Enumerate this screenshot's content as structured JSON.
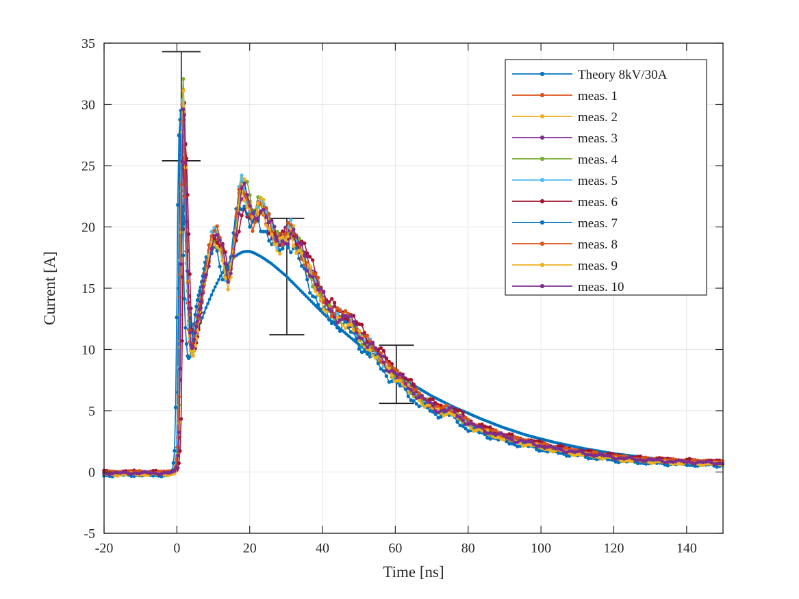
{
  "chart_data": {
    "type": "line",
    "title": "",
    "xlabel": "Time [ns]",
    "ylabel": "Current [A]",
    "xlim": [
      -20,
      150
    ],
    "ylim": [
      -5,
      35
    ],
    "x_ticks": [
      -20,
      0,
      20,
      40,
      60,
      80,
      100,
      120,
      140
    ],
    "y_ticks": [
      -5,
      0,
      5,
      10,
      15,
      20,
      25,
      30,
      35
    ],
    "grid": true,
    "legend_position": "top-right",
    "axis_color": "#262626",
    "grid_color": "#e6e6e6",
    "errorbar_color": "#1a1a1a",
    "errorbars": [
      {
        "t": 1.2,
        "lo": 25.4,
        "hi": 34.3,
        "cap_half_ns": 5.3
      },
      {
        "t": 30.2,
        "lo": 11.2,
        "hi": 20.7,
        "cap_half_ns": 4.8
      },
      {
        "t": 60.3,
        "lo": 5.6,
        "hi": 10.35,
        "cap_half_ns": 4.8
      }
    ],
    "theory": {
      "name": "Theory 8kV/30A",
      "color": "#0072BD",
      "points": [
        [
          -20,
          0
        ],
        [
          -1,
          0
        ],
        [
          -0.6,
          0.1
        ],
        [
          -0.3,
          0.5
        ],
        [
          0,
          2
        ],
        [
          0.2,
          5
        ],
        [
          0.4,
          11
        ],
        [
          0.6,
          19
        ],
        [
          0.8,
          26
        ],
        [
          1.0,
          29.5
        ],
        [
          1.1,
          30
        ],
        [
          1.3,
          29
        ],
        [
          1.6,
          26.5
        ],
        [
          2,
          22.5
        ],
        [
          2.5,
          18
        ],
        [
          3,
          14.8
        ],
        [
          3.5,
          12.9
        ],
        [
          4,
          11.9
        ],
        [
          4.5,
          11.4
        ],
        [
          5,
          11.3
        ],
        [
          5.5,
          11.4
        ],
        [
          6,
          11.8
        ],
        [
          7,
          12.6
        ],
        [
          8,
          13.4
        ],
        [
          9,
          14.1
        ],
        [
          10,
          14.8
        ],
        [
          11,
          15.4
        ],
        [
          12,
          16.0
        ],
        [
          13,
          16.5
        ],
        [
          14,
          16.9
        ],
        [
          15,
          17.3
        ],
        [
          16,
          17.6
        ],
        [
          17,
          17.8
        ],
        [
          18,
          17.95
        ],
        [
          19,
          18.0
        ],
        [
          20,
          18.0
        ],
        [
          21,
          17.9
        ],
        [
          22,
          17.75
        ],
        [
          23,
          17.6
        ],
        [
          24,
          17.4
        ],
        [
          25,
          17.2
        ],
        [
          26,
          17.0
        ],
        [
          27,
          16.75
        ],
        [
          28,
          16.5
        ],
        [
          29,
          16.25
        ],
        [
          30,
          16.0
        ],
        [
          32,
          15.4
        ],
        [
          34,
          14.8
        ],
        [
          36,
          14.2
        ],
        [
          38,
          13.6
        ],
        [
          40,
          13.0
        ],
        [
          42,
          12.45
        ],
        [
          44,
          11.9
        ],
        [
          46,
          11.4
        ],
        [
          48,
          10.9
        ],
        [
          50,
          10.4
        ],
        [
          52,
          9.95
        ],
        [
          54,
          9.5
        ],
        [
          56,
          9.0
        ],
        [
          58,
          8.5
        ],
        [
          60,
          8.0
        ],
        [
          62,
          7.6
        ],
        [
          64,
          7.25
        ],
        [
          66,
          6.9
        ],
        [
          68,
          6.55
        ],
        [
          70,
          6.2
        ],
        [
          72,
          5.9
        ],
        [
          74,
          5.6
        ],
        [
          76,
          5.3
        ],
        [
          78,
          5.05
        ],
        [
          80,
          4.8
        ],
        [
          83,
          4.4
        ],
        [
          86,
          4.05
        ],
        [
          89,
          3.7
        ],
        [
          92,
          3.4
        ],
        [
          95,
          3.1
        ],
        [
          98,
          2.85
        ],
        [
          100,
          2.7
        ],
        [
          104,
          2.4
        ],
        [
          108,
          2.15
        ],
        [
          112,
          1.9
        ],
        [
          116,
          1.7
        ],
        [
          120,
          1.5
        ],
        [
          124,
          1.35
        ],
        [
          128,
          1.2
        ],
        [
          132,
          1.05
        ],
        [
          136,
          0.95
        ],
        [
          140,
          0.85
        ],
        [
          145,
          0.75
        ],
        [
          150,
          0.65
        ]
      ]
    },
    "measurement_base_points": [
      [
        -20,
        -0.1
      ],
      [
        -16,
        -0.12
      ],
      [
        -12,
        -0.08
      ],
      [
        -8,
        -0.12
      ],
      [
        -4,
        -0.1
      ],
      [
        -2,
        -0.08
      ],
      [
        -1,
        -0.02
      ],
      [
        -0.5,
        0.4
      ],
      [
        0,
        2
      ],
      [
        0.3,
        6
      ],
      [
        0.6,
        14
      ],
      [
        0.9,
        24
      ],
      [
        1.2,
        30
      ],
      [
        1.5,
        31
      ],
      [
        1.8,
        27.5
      ],
      [
        2.2,
        21
      ],
      [
        2.6,
        15.5
      ],
      [
        3,
        12
      ],
      [
        3.5,
        10
      ],
      [
        4,
        9.8
      ],
      [
        4.5,
        10.7
      ],
      [
        5,
        11.7
      ],
      [
        6,
        13.5
      ],
      [
        7,
        15.3
      ],
      [
        8,
        17
      ],
      [
        9,
        18.5
      ],
      [
        10,
        19.3
      ],
      [
        10.5,
        19.5
      ],
      [
        11,
        19.2
      ],
      [
        12,
        17.9
      ],
      [
        13,
        16.2
      ],
      [
        13.5,
        15.6
      ],
      [
        14,
        15.9
      ],
      [
        15,
        17.4
      ],
      [
        16,
        20.4
      ],
      [
        17,
        22.9
      ],
      [
        17.5,
        23.3
      ],
      [
        18,
        23.2
      ],
      [
        19,
        22.4
      ],
      [
        20,
        21
      ],
      [
        20.5,
        20.5
      ],
      [
        21,
        20.7
      ],
      [
        22,
        21.8
      ],
      [
        22.5,
        22
      ],
      [
        23,
        21.8
      ],
      [
        24,
        21.2
      ],
      [
        25,
        20.4
      ],
      [
        26,
        19.5
      ],
      [
        27,
        18.9
      ],
      [
        28,
        18.6
      ],
      [
        29,
        19
      ],
      [
        30,
        19.4
      ],
      [
        31,
        19.6
      ],
      [
        32,
        19.2
      ],
      [
        33,
        18.5
      ],
      [
        34,
        17.8
      ],
      [
        35,
        17.1
      ],
      [
        36,
        16.5
      ],
      [
        37,
        15.9
      ],
      [
        38,
        15.3
      ],
      [
        39,
        14.6
      ],
      [
        40,
        13.9
      ],
      [
        41,
        13.4
      ],
      [
        42,
        13
      ],
      [
        43,
        12.8
      ],
      [
        44,
        12.7
      ],
      [
        45,
        12.5
      ],
      [
        46,
        12.6
      ],
      [
        47,
        12.4
      ],
      [
        48,
        11.9
      ],
      [
        49,
        11.5
      ],
      [
        50,
        11.1
      ],
      [
        51,
        10.7
      ],
      [
        52,
        10.4
      ],
      [
        53,
        10.2
      ],
      [
        54,
        9.9
      ],
      [
        55,
        9.5
      ],
      [
        56,
        9.1
      ],
      [
        57,
        8.7
      ],
      [
        58,
        8.4
      ],
      [
        59,
        8.1
      ],
      [
        60,
        7.9
      ],
      [
        61,
        7.6
      ],
      [
        62,
        7.3
      ],
      [
        63,
        7
      ],
      [
        64,
        6.7
      ],
      [
        65,
        6.4
      ],
      [
        66,
        6.1
      ],
      [
        67,
        5.9
      ],
      [
        68,
        5.7
      ],
      [
        69,
        5.5
      ],
      [
        70,
        5.3
      ],
      [
        71,
        5.1
      ],
      [
        72,
        5
      ],
      [
        73,
        5
      ],
      [
        74,
        5.05
      ],
      [
        75,
        5
      ],
      [
        76,
        4.8
      ],
      [
        77,
        4.5
      ],
      [
        78,
        4.3
      ],
      [
        79,
        4.1
      ],
      [
        80,
        3.9
      ],
      [
        82,
        3.6
      ],
      [
        84,
        3.4
      ],
      [
        86,
        3.2
      ],
      [
        88,
        3
      ],
      [
        90,
        2.8
      ],
      [
        92,
        2.6
      ],
      [
        94,
        2.5
      ],
      [
        96,
        2.35
      ],
      [
        98,
        2.25
      ],
      [
        100,
        2.1
      ],
      [
        103,
        1.9
      ],
      [
        106,
        1.75
      ],
      [
        110,
        1.55
      ],
      [
        114,
        1.4
      ],
      [
        118,
        1.25
      ],
      [
        122,
        1.1
      ],
      [
        126,
        1
      ],
      [
        130,
        0.95
      ],
      [
        135,
        0.85
      ],
      [
        140,
        0.8
      ],
      [
        145,
        0.75
      ],
      [
        150,
        0.7
      ]
    ],
    "measurements": [
      {
        "name": "meas. 1",
        "color": "#D95319",
        "dt": 0.2,
        "dy": 0.25,
        "peak_scale": 0.98,
        "seed": 1
      },
      {
        "name": "meas. 2",
        "color": "#EDB120",
        "dt": 0.35,
        "dy": -0.15,
        "peak_scale": 1.02,
        "seed": 2
      },
      {
        "name": "meas. 3",
        "color": "#7E2F8E",
        "dt": 0.5,
        "dy": 0.1,
        "peak_scale": 0.97,
        "seed": 3
      },
      {
        "name": "meas. 4",
        "color": "#77AC30",
        "dt": 0.3,
        "dy": -0.05,
        "peak_scale": 1.065,
        "seed": 4
      },
      {
        "name": "meas. 5",
        "color": "#4DBEEE",
        "dt": 0.15,
        "dy": 0.2,
        "peak_scale": 0.99,
        "seed": 5
      },
      {
        "name": "meas. 6",
        "color": "#A2142F",
        "dt": 1.0,
        "dy": 0.45,
        "peak_scale": 0.84,
        "seed": 6
      },
      {
        "name": "meas. 7",
        "color": "#0072BD",
        "dt": -0.6,
        "dy": -0.55,
        "peak_scale": 0.96,
        "seed": 7
      },
      {
        "name": "meas. 8",
        "color": "#D95319",
        "dt": 0.25,
        "dy": 0.3,
        "peak_scale": 0.95,
        "seed": 8
      },
      {
        "name": "meas. 9",
        "color": "#EDB120",
        "dt": 0.4,
        "dy": -0.3,
        "peak_scale": 1.01,
        "seed": 9
      },
      {
        "name": "meas. 10",
        "color": "#7E2F8E",
        "dt": 0.45,
        "dy": 0.05,
        "peak_scale": 0.98,
        "seed": 10
      }
    ]
  }
}
